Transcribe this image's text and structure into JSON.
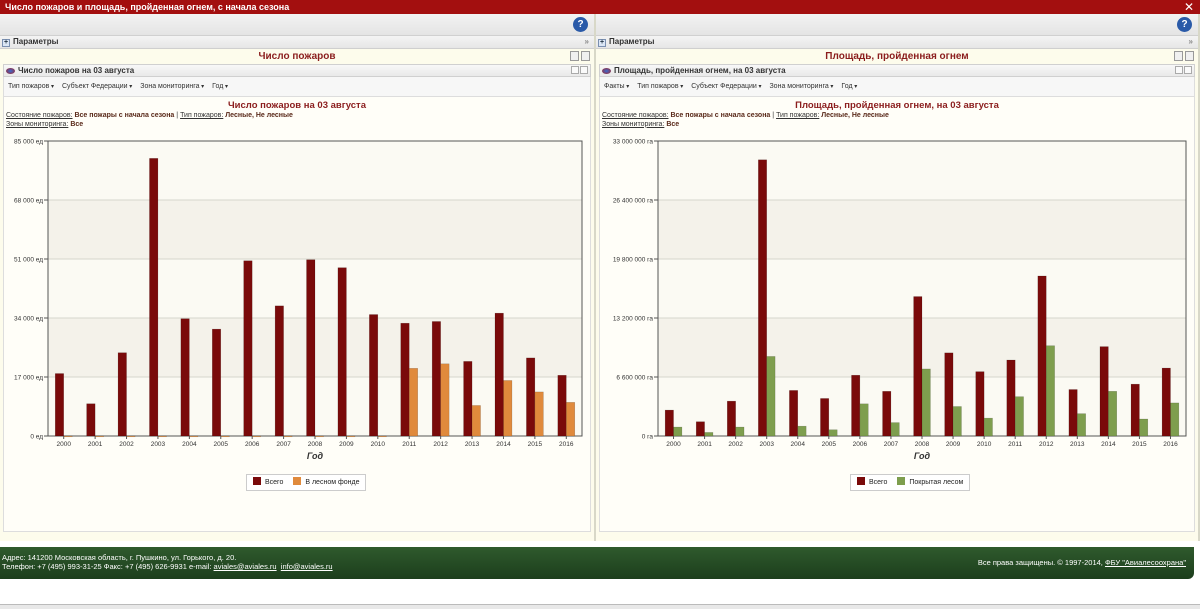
{
  "window": {
    "title": "Число пожаров и площадь, пройденная огнем, с начала сезона",
    "close_label": "✕"
  },
  "left": {
    "params_label": "Параметры",
    "panel_title": "Число пожаров",
    "subpanel_title": "Число пожаров на 03 августа",
    "filters": [
      "Тип пожаров",
      "Субъект Федерации",
      "Зона мониторинга",
      "Год"
    ],
    "chart_title": "Число пожаров на 03 августа",
    "meta": {
      "state_label": "Состояние пожаров:",
      "state_value": "Все пожары с начала сезона",
      "sep": "|",
      "type_label": "Тип пожаров:",
      "type_value": "Лесные, Не лесные",
      "zones_label": "Зоны мониторинга:",
      "zones_value": "Все"
    }
  },
  "right": {
    "params_label": "Параметры",
    "panel_title": "Площадь, пройденная огнем",
    "subpanel_title": "Площадь, пройденная огнем, на 03 августа",
    "filters": [
      "Факты",
      "Тип пожаров",
      "Субъект Федерации",
      "Зона мониторинга",
      "Год"
    ],
    "chart_title": "Площадь, пройденная огнем, на 03 августа",
    "meta": {
      "state_label": "Состояние пожаров:",
      "state_value": "Все пожары с начала сезона",
      "sep": "|",
      "type_label": "Тип пожаров:",
      "type_value": "Лесные, Не лесные",
      "zones_label": "Зоны мониторинга:",
      "zones_value": "Все"
    }
  },
  "chart_data": [
    {
      "type": "bar",
      "title": "Число пожаров на 03 августа",
      "xlabel": "Год",
      "ylabel": "",
      "categories": [
        "2000",
        "2001",
        "2002",
        "2003",
        "2004",
        "2005",
        "2006",
        "2007",
        "2008",
        "2009",
        "2010",
        "2011",
        "2012",
        "2013",
        "2014",
        "2015",
        "2016"
      ],
      "ylim": [
        0,
        85000
      ],
      "yticks": [
        "0 ед",
        "17 000 ед",
        "34 000 ед",
        "51 000 ед",
        "68 000 ед",
        "85 000 ед"
      ],
      "grid": true,
      "legend": "bottom-center",
      "series": [
        {
          "name": "Всего",
          "color": "#7a0a0a",
          "values": [
            18000,
            9300,
            24000,
            80000,
            33800,
            30800,
            50500,
            37500,
            50800,
            48500,
            35000,
            32500,
            33000,
            21500,
            35400,
            22500,
            17500
          ]
        },
        {
          "name": "В лесном фонде",
          "color": "#e08a3c",
          "values": [
            0,
            0,
            0,
            0,
            0,
            0,
            0,
            0,
            0,
            0,
            0,
            19500,
            20800,
            8800,
            16000,
            12700,
            9700
          ]
        }
      ]
    },
    {
      "type": "bar",
      "title": "Площадь, пройденная огнем, на 03 августа",
      "xlabel": "Год",
      "ylabel": "",
      "categories": [
        "2000",
        "2001",
        "2002",
        "2003",
        "2004",
        "2005",
        "2006",
        "2007",
        "2008",
        "2009",
        "2010",
        "2011",
        "2012",
        "2013",
        "2014",
        "2015",
        "2016"
      ],
      "ylim": [
        0,
        33000000
      ],
      "yticks": [
        "0 га",
        "6 600 000 га",
        "13 200 000 га",
        "19 800 000 га",
        "26 400 000 га",
        "33 000 000 га"
      ],
      "grid": true,
      "legend": "bottom-center",
      "series": [
        {
          "name": "Всего",
          "color": "#7a0a0a",
          "values": [
            2900000,
            1600000,
            3900000,
            30900000,
            5100000,
            4200000,
            6800000,
            5000000,
            15600000,
            9300000,
            7200000,
            8500000,
            17900000,
            5200000,
            10000000,
            5800000,
            7600000
          ]
        },
        {
          "name": "Покрытая лесом",
          "color": "#7e9e4e",
          "values": [
            1000000,
            400000,
            1000000,
            8900000,
            1100000,
            700000,
            3600000,
            1500000,
            7500000,
            3300000,
            2000000,
            4400000,
            10100000,
            2500000,
            5000000,
            1900000,
            3700000
          ]
        }
      ]
    }
  ],
  "footer": {
    "address": "Адрес: 141200 Московская область, г. Пушкино, ул. Горького, д. 20.",
    "phone_line": "Телефон: +7 (495) 993-31-25  Факс: +7 (495) 626-9931   e-mail:",
    "email1": "aviales@aviales.ru",
    "email2": "info@aviales.ru",
    "rights": "Все права защищены. © 1997-2014,",
    "org": "ФБУ \"Авиалесоохрана\""
  }
}
